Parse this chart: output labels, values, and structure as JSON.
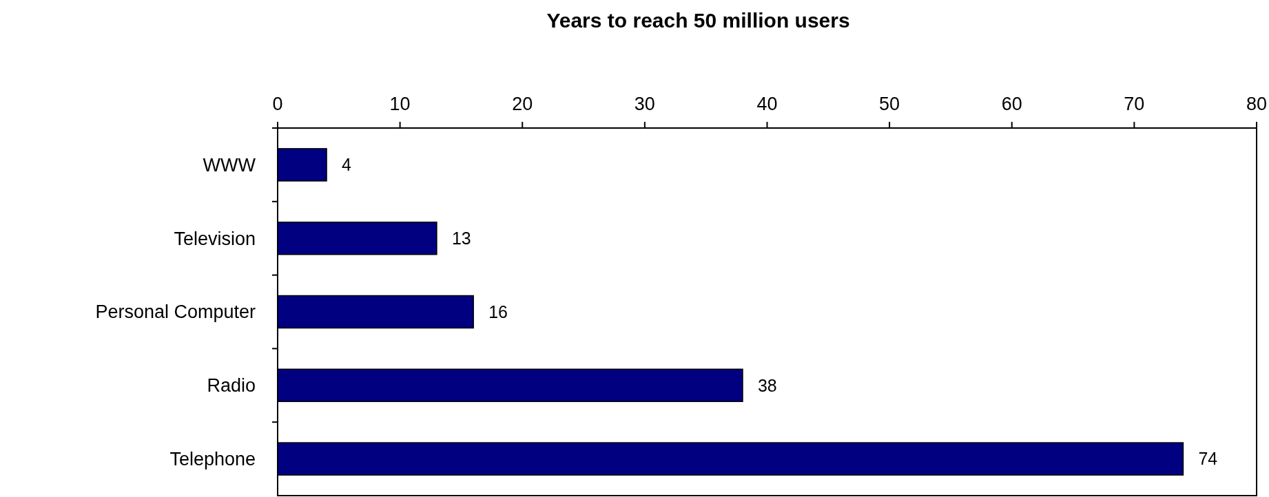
{
  "chart_data": {
    "type": "bar",
    "orientation": "horizontal",
    "title": "Years to reach 50 million users",
    "categories": [
      "WWW",
      "Television",
      "Personal Computer",
      "Radio",
      "Telephone"
    ],
    "values": [
      4,
      13,
      16,
      38,
      74
    ],
    "color": "#000080",
    "xlim": [
      0,
      80
    ],
    "xticks": [
      0,
      10,
      20,
      30,
      40,
      50,
      60,
      70,
      80
    ],
    "data_labels": true
  }
}
